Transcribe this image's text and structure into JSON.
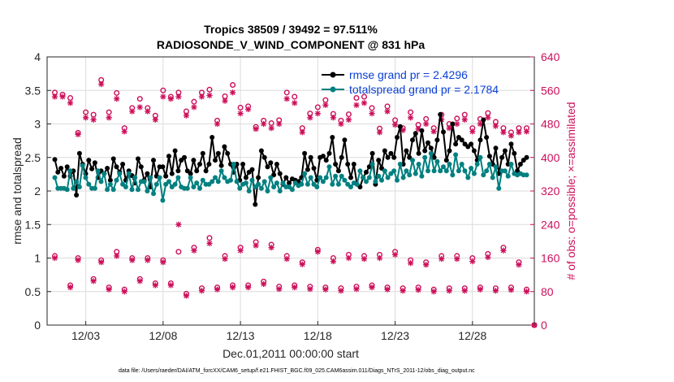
{
  "chart_data": {
    "type": "line",
    "title_line1": "Tropics 38509 / 39492 = 97.511%",
    "title_line2": "RADIOSONDE_V_WIND_COMPONENT @ 831 hPa",
    "xlabel": "Dec.01,2011 00:00:00 start",
    "ylabel_left": "rmse and totalspread",
    "ylabel_right": "# of obs: o=possible; ×=assimilated",
    "footnote": "data file: /Users/raeder/DAI/ATM_forcXX/CAM6_setup/f.e21.FHIST_BGC.f09_025.CAM6assim.011/Diags_NTrS_2011-12/obs_diag_output.nc",
    "x_range_days": [
      0.5,
      32.0
    ],
    "ylim_left": [
      0,
      4
    ],
    "ylim_right": [
      0,
      640
    ],
    "x_tick_days": [
      3,
      8,
      13,
      18,
      23,
      28
    ],
    "x_tick_labels": [
      "12/03",
      "12/08",
      "12/13",
      "12/18",
      "12/23",
      "12/28"
    ],
    "y_ticks_left": [
      "0",
      "0.5",
      "1",
      "1.5",
      "2",
      "2.5",
      "3",
      "3.5",
      "4"
    ],
    "y_ticks_right": [
      "0",
      "80",
      "160",
      "240",
      "320",
      "400",
      "480",
      "560",
      "640"
    ],
    "colors": {
      "rmse": "#000000",
      "spread": "#008080",
      "obs": "#cc0f5a",
      "legend_text": "#0a3fd6",
      "grid": "#dcdcdc"
    },
    "series": [
      {
        "name": "rmse",
        "legend": "rmse grand pr = 2.4296",
        "values": [
          2.47,
          2.28,
          2.34,
          2.22,
          2.36,
          2.22,
          2.3,
          1.94,
          2.56,
          2.4,
          2.26,
          2.46,
          2.33,
          2.42,
          2.2,
          2.3,
          2.26,
          2.34,
          2.16,
          2.48,
          2.36,
          2.28,
          2.4,
          2.16,
          2.3,
          2.23,
          2.12,
          2.48,
          2.36,
          2.16,
          2.26,
          2.06,
          2.46,
          2.22,
          2.36,
          2.36,
          2.22,
          2.52,
          2.26,
          2.6,
          2.3,
          2.46,
          2.5,
          2.3,
          2.26,
          2.46,
          2.3,
          2.4,
          2.56,
          2.3,
          2.4,
          2.8,
          2.46,
          2.56,
          2.38,
          2.66,
          2.56,
          2.4,
          2.28,
          2.4,
          2.16,
          2.4,
          2.2,
          2.28,
          2.32,
          1.8,
          2.2,
          2.6,
          2.5,
          2.36,
          2.42,
          2.24,
          2.4,
          2.26,
          2.1,
          2.2,
          2.12,
          2.18,
          2.16,
          2.14,
          2.2,
          2.56,
          2.32,
          2.5,
          2.34,
          2.16,
          2.5,
          2.52,
          2.46,
          2.56,
          2.8,
          2.4,
          2.3,
          2.5,
          2.76,
          2.4,
          2.2,
          2.4,
          2.1,
          2.06,
          2.2,
          2.28,
          2.36,
          2.56,
          2.1,
          2.46,
          2.34,
          2.6,
          2.5,
          2.56,
          2.5,
          2.8,
          2.96,
          2.4,
          2.6,
          2.5,
          2.76,
          2.86,
          2.56,
          2.9,
          2.6,
          2.72,
          2.64,
          2.5,
          2.76,
          3.14,
          2.88,
          2.46,
          2.6,
          3.0,
          2.7,
          2.8,
          2.76,
          2.7,
          2.66,
          2.7,
          2.6,
          2.46,
          2.76,
          3.06,
          2.8,
          2.52,
          2.4,
          2.64,
          2.26,
          2.5,
          2.6,
          2.4,
          2.7,
          2.56,
          2.3,
          2.4,
          2.46,
          2.5
        ]
      },
      {
        "name": "totalspread",
        "legend": "totalspread grand pr = 2.1784",
        "values": [
          2.2,
          2.04,
          2.04,
          2.04,
          2.02,
          2.3,
          2.04,
          2.14,
          2.06,
          2.38,
          2.2,
          2.1,
          2.04,
          2.04,
          2.3,
          2.14,
          2.26,
          2.02,
          2.1,
          2.02,
          2.16,
          2.26,
          2.1,
          2.06,
          2.26,
          2.02,
          2.2,
          2.02,
          2.14,
          2.14,
          2.0,
          2.2,
          1.96,
          2.1,
          2.2,
          1.86,
          2.1,
          2.14,
          2.06,
          2.1,
          2.2,
          2.06,
          2.04,
          2.04,
          2.2,
          2.06,
          2.12,
          2.04,
          2.16,
          2.1,
          2.1,
          2.14,
          2.2,
          2.14,
          2.3,
          2.2,
          2.14,
          2.16,
          2.4,
          2.14,
          2.04,
          2.1,
          2.12,
          2.0,
          2.16,
          2.06,
          2.1,
          2.04,
          2.14,
          2.0,
          2.2,
          2.06,
          2.12,
          2.0,
          2.12,
          2.06,
          2.06,
          2.02,
          2.12,
          2.08,
          2.1,
          2.26,
          2.1,
          2.2,
          2.1,
          2.06,
          2.2,
          2.14,
          2.2,
          2.36,
          2.1,
          2.22,
          2.1,
          2.22,
          2.16,
          2.1,
          2.06,
          2.12,
          2.1,
          2.3,
          2.2,
          2.14,
          2.2,
          2.4,
          2.14,
          2.22,
          2.16,
          2.3,
          2.2,
          2.26,
          2.3,
          2.16,
          2.4,
          2.2,
          2.3,
          2.24,
          2.46,
          2.26,
          2.4,
          2.22,
          2.5,
          2.3,
          2.56,
          2.3,
          2.44,
          2.3,
          2.36,
          2.3,
          2.4,
          2.24,
          2.54,
          2.3,
          2.4,
          2.3,
          2.2,
          2.34,
          2.26,
          2.4,
          2.5,
          2.24,
          2.3,
          2.4,
          2.2,
          2.36,
          2.04,
          2.3,
          2.3,
          2.22,
          2.4,
          2.26,
          2.24,
          2.26,
          2.24,
          2.24
        ]
      }
    ],
    "obs_possible": [
      {
        "day": 1.0,
        "n": 555
      },
      {
        "day": 1.5,
        "n": 550
      },
      {
        "day": 2.0,
        "n": 542
      },
      {
        "day": 2.5,
        "n": 459
      },
      {
        "day": 3.0,
        "n": 508
      },
      {
        "day": 3.5,
        "n": 502
      },
      {
        "day": 4.0,
        "n": 585
      },
      {
        "day": 4.5,
        "n": 508
      },
      {
        "day": 5.0,
        "n": 554
      },
      {
        "day": 5.5,
        "n": 470
      },
      {
        "day": 6.0,
        "n": 518
      },
      {
        "day": 6.5,
        "n": 540
      },
      {
        "day": 7.0,
        "n": 518
      },
      {
        "day": 7.5,
        "n": 500
      },
      {
        "day": 8.0,
        "n": 560
      },
      {
        "day": 8.5,
        "n": 545
      },
      {
        "day": 9.0,
        "n": 555
      },
      {
        "day": 9.5,
        "n": 510
      },
      {
        "day": 10.0,
        "n": 533
      },
      {
        "day": 10.5,
        "n": 555
      },
      {
        "day": 11.0,
        "n": 562
      },
      {
        "day": 11.5,
        "n": 488
      },
      {
        "day": 12.0,
        "n": 546
      },
      {
        "day": 12.5,
        "n": 573
      },
      {
        "day": 13.0,
        "n": 519
      },
      {
        "day": 13.5,
        "n": 522
      },
      {
        "day": 14.0,
        "n": 473
      },
      {
        "day": 14.5,
        "n": 488
      },
      {
        "day": 15.0,
        "n": 482
      },
      {
        "day": 15.5,
        "n": 489
      },
      {
        "day": 16.0,
        "n": 555
      },
      {
        "day": 16.5,
        "n": 545
      },
      {
        "day": 17.0,
        "n": 470
      },
      {
        "day": 17.5,
        "n": 505
      },
      {
        "day": 18.0,
        "n": 520
      },
      {
        "day": 18.5,
        "n": 537
      },
      {
        "day": 19.0,
        "n": 504
      },
      {
        "day": 19.5,
        "n": 488
      },
      {
        "day": 20.0,
        "n": 503
      },
      {
        "day": 20.5,
        "n": 542
      },
      {
        "day": 21.0,
        "n": 545
      },
      {
        "day": 21.5,
        "n": 518
      },
      {
        "day": 22.0,
        "n": 469
      },
      {
        "day": 22.5,
        "n": 522
      },
      {
        "day": 23.0,
        "n": 489
      },
      {
        "day": 23.5,
        "n": 470
      },
      {
        "day": 24.0,
        "n": 508
      },
      {
        "day": 24.5,
        "n": 478
      },
      {
        "day": 25.0,
        "n": 492
      },
      {
        "day": 25.5,
        "n": 470
      },
      {
        "day": 26.0,
        "n": 502
      },
      {
        "day": 26.5,
        "n": 480
      },
      {
        "day": 27.0,
        "n": 493
      },
      {
        "day": 27.5,
        "n": 502
      },
      {
        "day": 28.0,
        "n": 470
      },
      {
        "day": 28.5,
        "n": 492
      },
      {
        "day": 29.0,
        "n": 506
      },
      {
        "day": 29.5,
        "n": 485
      },
      {
        "day": 30.0,
        "n": 470
      },
      {
        "day": 30.5,
        "n": 460
      },
      {
        "day": 31.0,
        "n": 470
      },
      {
        "day": 31.5,
        "n": 470
      },
      {
        "day": 1.0,
        "n": 165
      },
      {
        "day": 2.0,
        "n": 95
      },
      {
        "day": 2.5,
        "n": 160
      },
      {
        "day": 3.5,
        "n": 110
      },
      {
        "day": 4.0,
        "n": 155
      },
      {
        "day": 4.5,
        "n": 90
      },
      {
        "day": 5.0,
        "n": 175
      },
      {
        "day": 5.5,
        "n": 85
      },
      {
        "day": 6.0,
        "n": 160
      },
      {
        "day": 6.5,
        "n": 110
      },
      {
        "day": 7.0,
        "n": 160
      },
      {
        "day": 7.5,
        "n": 100
      },
      {
        "day": 8.0,
        "n": 155
      },
      {
        "day": 8.5,
        "n": 100
      },
      {
        "day": 9.0,
        "n": 175
      },
      {
        "day": 9.5,
        "n": 75
      },
      {
        "day": 10.0,
        "n": 185
      },
      {
        "day": 10.5,
        "n": 88
      },
      {
        "day": 11.0,
        "n": 208
      },
      {
        "day": 11.5,
        "n": 90
      },
      {
        "day": 12.0,
        "n": 165
      },
      {
        "day": 12.5,
        "n": 95
      },
      {
        "day": 13.0,
        "n": 185
      },
      {
        "day": 13.5,
        "n": 95
      },
      {
        "day": 14.0,
        "n": 198
      },
      {
        "day": 14.5,
        "n": 104
      },
      {
        "day": 15.0,
        "n": 192
      },
      {
        "day": 15.5,
        "n": 92
      },
      {
        "day": 16.0,
        "n": 165
      },
      {
        "day": 16.5,
        "n": 95
      },
      {
        "day": 17.0,
        "n": 150
      },
      {
        "day": 17.5,
        "n": 92
      },
      {
        "day": 18.0,
        "n": 180
      },
      {
        "day": 18.5,
        "n": 90
      },
      {
        "day": 19.0,
        "n": 160
      },
      {
        "day": 19.5,
        "n": 88
      },
      {
        "day": 20.0,
        "n": 168
      },
      {
        "day": 20.5,
        "n": 92
      },
      {
        "day": 21.0,
        "n": 165
      },
      {
        "day": 21.5,
        "n": 95
      },
      {
        "day": 22.0,
        "n": 168
      },
      {
        "day": 22.5,
        "n": 90
      },
      {
        "day": 23.0,
        "n": 175
      },
      {
        "day": 23.5,
        "n": 88
      },
      {
        "day": 24.0,
        "n": 155
      },
      {
        "day": 24.5,
        "n": 90
      },
      {
        "day": 25.0,
        "n": 150
      },
      {
        "day": 25.5,
        "n": 85
      },
      {
        "day": 26.0,
        "n": 165
      },
      {
        "day": 26.5,
        "n": 88
      },
      {
        "day": 27.0,
        "n": 165
      },
      {
        "day": 27.5,
        "n": 88
      },
      {
        "day": 28.0,
        "n": 160
      },
      {
        "day": 28.5,
        "n": 90
      },
      {
        "day": 29.0,
        "n": 170
      },
      {
        "day": 29.5,
        "n": 88
      },
      {
        "day": 30.0,
        "n": 185
      },
      {
        "day": 30.5,
        "n": 90
      },
      {
        "day": 31.0,
        "n": 150
      },
      {
        "day": 31.5,
        "n": 85
      },
      {
        "day": 32.0,
        "n": 0
      }
    ],
    "obs_assimilated": [
      {
        "day": 1.0,
        "n": 545
      },
      {
        "day": 1.5,
        "n": 545
      },
      {
        "day": 2.0,
        "n": 530
      },
      {
        "day": 2.5,
        "n": 455
      },
      {
        "day": 3.0,
        "n": 495
      },
      {
        "day": 3.5,
        "n": 490
      },
      {
        "day": 4.0,
        "n": 575
      },
      {
        "day": 4.5,
        "n": 495
      },
      {
        "day": 5.0,
        "n": 540
      },
      {
        "day": 5.5,
        "n": 462
      },
      {
        "day": 6.0,
        "n": 510
      },
      {
        "day": 6.5,
        "n": 520
      },
      {
        "day": 7.0,
        "n": 510
      },
      {
        "day": 7.5,
        "n": 490
      },
      {
        "day": 8.0,
        "n": 545
      },
      {
        "day": 8.5,
        "n": 540
      },
      {
        "day": 9.0,
        "n": 545
      },
      {
        "day": 9.5,
        "n": 500
      },
      {
        "day": 10.0,
        "n": 520
      },
      {
        "day": 10.5,
        "n": 545
      },
      {
        "day": 11.0,
        "n": 548
      },
      {
        "day": 11.5,
        "n": 480
      },
      {
        "day": 12.0,
        "n": 535
      },
      {
        "day": 12.5,
        "n": 555
      },
      {
        "day": 13.0,
        "n": 505
      },
      {
        "day": 13.5,
        "n": 515
      },
      {
        "day": 14.0,
        "n": 468
      },
      {
        "day": 14.5,
        "n": 480
      },
      {
        "day": 15.0,
        "n": 470
      },
      {
        "day": 15.5,
        "n": 480
      },
      {
        "day": 16.0,
        "n": 540
      },
      {
        "day": 16.5,
        "n": 530
      },
      {
        "day": 17.0,
        "n": 460
      },
      {
        "day": 17.5,
        "n": 495
      },
      {
        "day": 18.0,
        "n": 505
      },
      {
        "day": 18.5,
        "n": 525
      },
      {
        "day": 19.0,
        "n": 495
      },
      {
        "day": 19.5,
        "n": 480
      },
      {
        "day": 20.0,
        "n": 490
      },
      {
        "day": 20.5,
        "n": 525
      },
      {
        "day": 21.0,
        "n": 530
      },
      {
        "day": 21.5,
        "n": 505
      },
      {
        "day": 22.0,
        "n": 460
      },
      {
        "day": 22.5,
        "n": 510
      },
      {
        "day": 23.0,
        "n": 478
      },
      {
        "day": 23.5,
        "n": 465
      },
      {
        "day": 24.0,
        "n": 495
      },
      {
        "day": 24.5,
        "n": 468
      },
      {
        "day": 25.0,
        "n": 480
      },
      {
        "day": 25.5,
        "n": 462
      },
      {
        "day": 26.0,
        "n": 490
      },
      {
        "day": 26.5,
        "n": 470
      },
      {
        "day": 27.0,
        "n": 480
      },
      {
        "day": 27.5,
        "n": 490
      },
      {
        "day": 28.0,
        "n": 462
      },
      {
        "day": 28.5,
        "n": 480
      },
      {
        "day": 29.0,
        "n": 495
      },
      {
        "day": 29.5,
        "n": 475
      },
      {
        "day": 30.0,
        "n": 460
      },
      {
        "day": 30.5,
        "n": 452
      },
      {
        "day": 31.0,
        "n": 460
      },
      {
        "day": 31.5,
        "n": 462
      },
      {
        "day": 1.0,
        "n": 160
      },
      {
        "day": 2.0,
        "n": 90
      },
      {
        "day": 2.5,
        "n": 155
      },
      {
        "day": 3.5,
        "n": 105
      },
      {
        "day": 4.0,
        "n": 150
      },
      {
        "day": 4.5,
        "n": 85
      },
      {
        "day": 5.0,
        "n": 165
      },
      {
        "day": 5.5,
        "n": 80
      },
      {
        "day": 6.0,
        "n": 155
      },
      {
        "day": 6.5,
        "n": 105
      },
      {
        "day": 7.0,
        "n": 155
      },
      {
        "day": 7.5,
        "n": 95
      },
      {
        "day": 8.0,
        "n": 150
      },
      {
        "day": 8.5,
        "n": 95
      },
      {
        "day": 9.0,
        "n": 240
      },
      {
        "day": 9.5,
        "n": 70
      },
      {
        "day": 10.0,
        "n": 178
      },
      {
        "day": 10.5,
        "n": 82
      },
      {
        "day": 11.0,
        "n": 195
      },
      {
        "day": 11.5,
        "n": 85
      },
      {
        "day": 12.0,
        "n": 158
      },
      {
        "day": 12.5,
        "n": 90
      },
      {
        "day": 13.0,
        "n": 178
      },
      {
        "day": 13.5,
        "n": 90
      },
      {
        "day": 14.0,
        "n": 190
      },
      {
        "day": 14.5,
        "n": 98
      },
      {
        "day": 15.0,
        "n": 185
      },
      {
        "day": 15.5,
        "n": 86
      },
      {
        "day": 16.0,
        "n": 158
      },
      {
        "day": 16.5,
        "n": 90
      },
      {
        "day": 17.0,
        "n": 145
      },
      {
        "day": 17.5,
        "n": 86
      },
      {
        "day": 18.0,
        "n": 175
      },
      {
        "day": 18.5,
        "n": 85
      },
      {
        "day": 19.0,
        "n": 152
      },
      {
        "day": 19.5,
        "n": 82
      },
      {
        "day": 20.0,
        "n": 160
      },
      {
        "day": 20.5,
        "n": 86
      },
      {
        "day": 21.0,
        "n": 158
      },
      {
        "day": 21.5,
        "n": 90
      },
      {
        "day": 22.0,
        "n": 160
      },
      {
        "day": 22.5,
        "n": 85
      },
      {
        "day": 23.0,
        "n": 168
      },
      {
        "day": 23.5,
        "n": 82
      },
      {
        "day": 24.0,
        "n": 148
      },
      {
        "day": 24.5,
        "n": 84
      },
      {
        "day": 25.0,
        "n": 144
      },
      {
        "day": 25.5,
        "n": 80
      },
      {
        "day": 26.0,
        "n": 158
      },
      {
        "day": 26.5,
        "n": 82
      },
      {
        "day": 27.0,
        "n": 158
      },
      {
        "day": 27.5,
        "n": 82
      },
      {
        "day": 28.0,
        "n": 152
      },
      {
        "day": 28.5,
        "n": 85
      },
      {
        "day": 29.0,
        "n": 162
      },
      {
        "day": 29.5,
        "n": 82
      },
      {
        "day": 30.0,
        "n": 178
      },
      {
        "day": 30.5,
        "n": 84
      },
      {
        "day": 31.0,
        "n": 144
      },
      {
        "day": 31.5,
        "n": 80
      },
      {
        "day": 32.0,
        "n": 0
      }
    ]
  }
}
